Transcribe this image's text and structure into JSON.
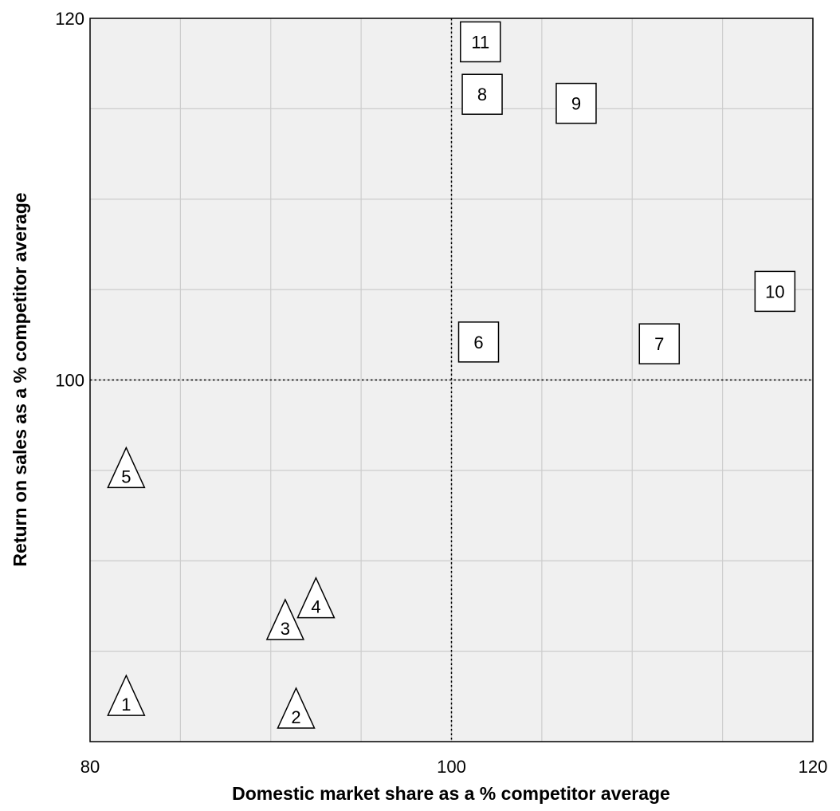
{
  "chart_data": {
    "type": "scatter",
    "title": "",
    "xlabel": "Domestic market share as a % competitor average",
    "ylabel": "Return on sales as a % competitor average",
    "xlim": [
      80,
      120
    ],
    "ylim": [
      80,
      120
    ],
    "x_tick_labels": [
      "80",
      "100",
      "120"
    ],
    "y_tick_labels": [
      "100",
      "120"
    ],
    "x_ticks": [
      80,
      100,
      120
    ],
    "y_ticks": [
      100,
      120
    ],
    "grid": true,
    "x_grid_step": 5,
    "y_grid_step": 5,
    "reference_lines": {
      "x": 100,
      "y": 100
    },
    "colors": {
      "plot_background": "#f0f0f0",
      "grid": "#cccccc",
      "marker_fill": "#ffffff",
      "marker_stroke": "#000000"
    },
    "series": [
      {
        "marker": "triangle",
        "points": [
          {
            "label": "1",
            "x": 82.0,
            "y": 82.2
          },
          {
            "label": "2",
            "x": 91.4,
            "y": 81.5
          },
          {
            "label": "3",
            "x": 90.8,
            "y": 86.4
          },
          {
            "label": "4",
            "x": 92.5,
            "y": 87.6
          },
          {
            "label": "5",
            "x": 82.0,
            "y": 94.8
          }
        ]
      },
      {
        "marker": "square",
        "points": [
          {
            "label": "6",
            "x": 101.5,
            "y": 102.1
          },
          {
            "label": "7",
            "x": 111.5,
            "y": 102.0
          },
          {
            "label": "8",
            "x": 101.7,
            "y": 115.8
          },
          {
            "label": "9",
            "x": 106.9,
            "y": 115.3
          },
          {
            "label": "10",
            "x": 117.9,
            "y": 104.9
          },
          {
            "label": "11",
            "x": 101.6,
            "y": 118.7
          }
        ]
      }
    ]
  }
}
